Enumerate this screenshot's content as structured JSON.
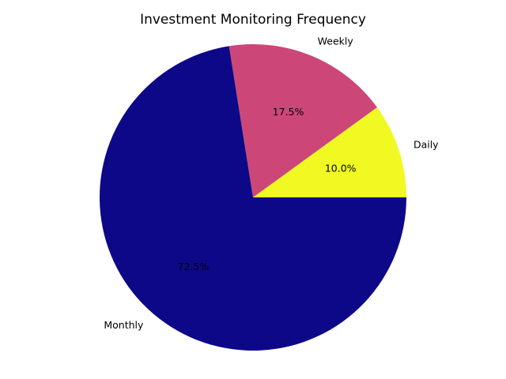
{
  "chart_data": {
    "type": "pie",
    "title": "Investment Monitoring Frequency",
    "slices": [
      {
        "label": "Daily",
        "value": 10.0,
        "pct_label": "10.0%",
        "color": "#f0f921"
      },
      {
        "label": "Weekly",
        "value": 17.5,
        "pct_label": "17.5%",
        "color": "#cc4778"
      },
      {
        "label": "Monthly",
        "value": 72.5,
        "pct_label": "72.5%",
        "color": "#0d0887"
      }
    ],
    "start_angle_deg": 0,
    "direction": "counterclockwise"
  }
}
